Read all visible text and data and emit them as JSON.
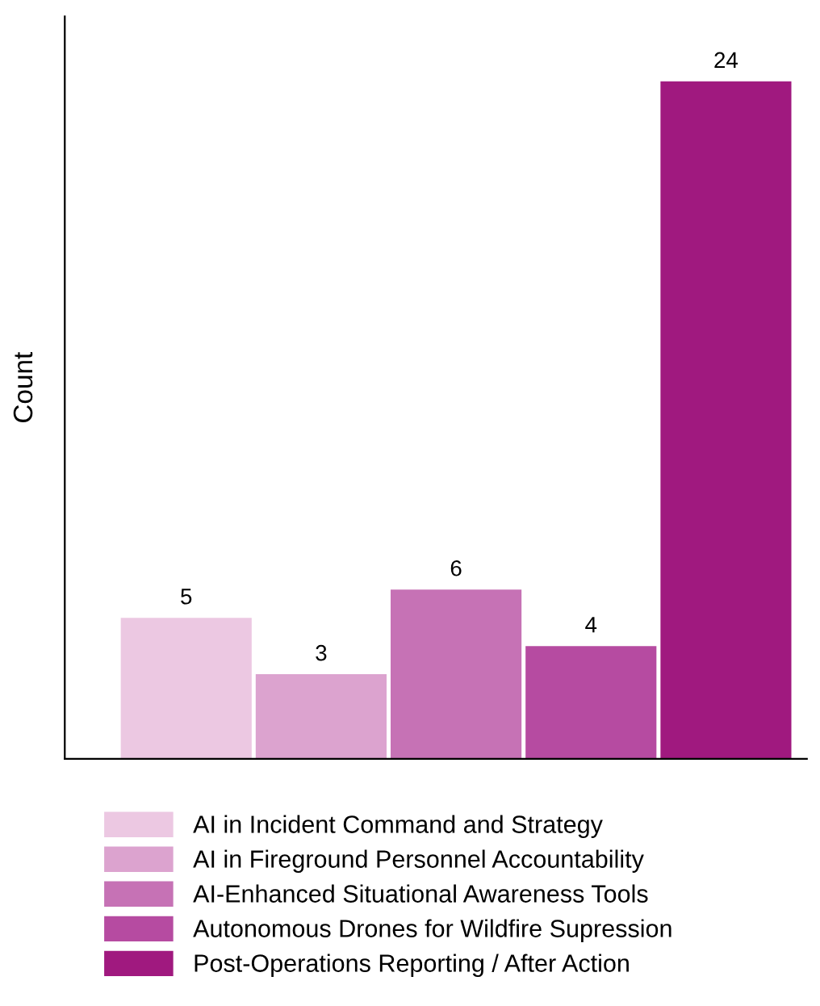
{
  "chart_data": {
    "type": "bar",
    "ylabel": "Count",
    "categories": [
      null,
      null,
      null,
      null,
      null
    ],
    "series": [
      {
        "name": "AI in Incident Command and Strategy",
        "color": "#ecc8e2",
        "values": [
          5,
          null,
          null,
          null,
          null
        ]
      },
      {
        "name": "AI in Fireground Personnel Accountability",
        "color": "#dca3cf",
        "values": [
          null,
          3,
          null,
          null,
          null
        ]
      },
      {
        "name": "AI-Enhanced Situational Awareness Tools",
        "color": "#c672b5",
        "values": [
          null,
          null,
          6,
          null,
          null
        ]
      },
      {
        "name": "Autonomous Drones for Wildfire Supression",
        "color": "#b64ba1",
        "values": [
          null,
          null,
          null,
          4,
          null
        ]
      },
      {
        "name": "Post-Operations Reporting / After Action",
        "color": "#a0197f",
        "values": [
          null,
          null,
          null,
          null,
          24
        ]
      }
    ],
    "stacked": true,
    "ylim": [
      0,
      26.3
    ],
    "data_labels": true,
    "tick_labels": false,
    "legend": "bottom",
    "grid": false
  }
}
